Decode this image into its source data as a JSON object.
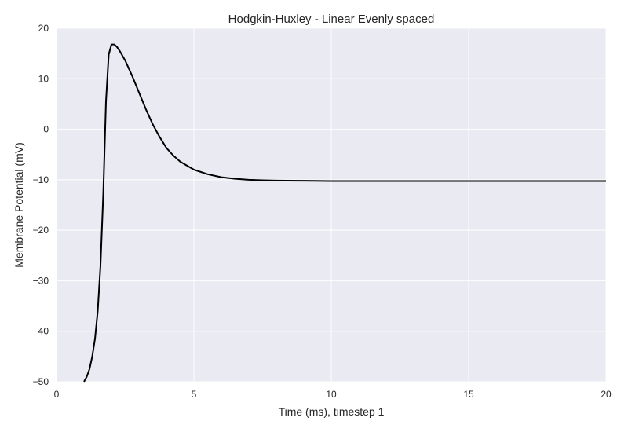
{
  "chart_data": {
    "type": "line",
    "title": "Hodgkin-Huxley - Linear Evenly spaced",
    "xlabel": "Time (ms), timestep 1",
    "ylabel": "Membrane Potential (mV)",
    "xlim": [
      0,
      20
    ],
    "ylim": [
      -50,
      20
    ],
    "xticks": [
      0,
      5,
      10,
      15,
      20
    ],
    "xtick_labels": [
      "0",
      "5",
      "10",
      "15",
      "20"
    ],
    "yticks": [
      20,
      10,
      0,
      -10,
      -20,
      -30,
      -40,
      -50
    ],
    "ytick_labels": [
      "20",
      "10",
      "0",
      "−10",
      "−20",
      "−30",
      "−40",
      "−50"
    ],
    "grid": true,
    "background": "#EAEAF2",
    "grid_color": "#FFFFFF",
    "series": [
      {
        "color": "#000000",
        "x": [
          1.0,
          1.1,
          1.2,
          1.3,
          1.4,
          1.5,
          1.6,
          1.7,
          1.8,
          1.9,
          2.0,
          2.1,
          2.2,
          2.3,
          2.5,
          2.75,
          3.0,
          3.25,
          3.5,
          3.75,
          4.0,
          4.25,
          4.5,
          5.0,
          5.5,
          6.0,
          6.5,
          7.0,
          7.5,
          8.0,
          9.0,
          10.0,
          12.0,
          14.0,
          16.0,
          18.0,
          20.0
        ],
        "y": [
          -50.0,
          -49.0,
          -47.5,
          -45.0,
          -41.5,
          -36.0,
          -27.0,
          -13.0,
          5.5,
          14.8,
          16.8,
          16.8,
          16.3,
          15.5,
          13.6,
          10.6,
          7.3,
          4.0,
          1.0,
          -1.5,
          -3.7,
          -5.2,
          -6.4,
          -8.0,
          -8.9,
          -9.5,
          -9.8,
          -10.0,
          -10.1,
          -10.15,
          -10.2,
          -10.25,
          -10.25,
          -10.25,
          -10.25,
          -10.25,
          -10.25
        ]
      }
    ]
  }
}
